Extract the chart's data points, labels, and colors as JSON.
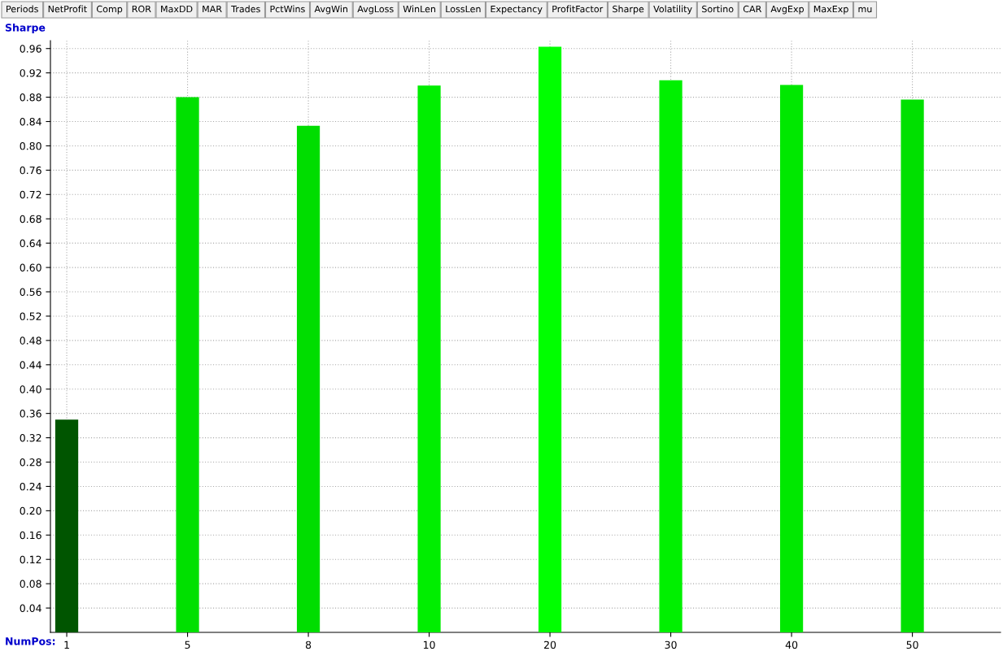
{
  "chart_data": {
    "type": "bar",
    "ylabel": "Sharpe",
    "xlabel": "NumPos:",
    "categories": [
      "1",
      "5",
      "8",
      "10",
      "20",
      "30",
      "40",
      "50"
    ],
    "values": [
      0.35,
      0.88,
      0.833,
      0.899,
      0.963,
      0.908,
      0.9,
      0.876
    ],
    "colors": [
      "#005500",
      "#00e000",
      "#00dd00",
      "#00ee00",
      "#00ff00",
      "#00f000",
      "#00e800",
      "#00e000"
    ],
    "ylim": [
      0,
      0.973
    ],
    "yticks": [
      0.04,
      0.08,
      0.12,
      0.16,
      {
        "value": 0.2,
        "label": "0.20"
      },
      0.24,
      0.28,
      0.32,
      0.36,
      {
        "value": 0.4,
        "label": "0.40"
      },
      0.44,
      0.48,
      0.52,
      0.56,
      {
        "value": 0.6,
        "label": "0.60"
      },
      0.64,
      0.68,
      0.72,
      0.76,
      {
        "value": 0.8,
        "label": "0.80"
      },
      0.84,
      0.88,
      0.92,
      0.96
    ],
    "grid": true,
    "annotations": [
      "Periods",
      "NetProfit",
      "Comp",
      "ROR",
      "MaxDD",
      "MAR",
      "Trades",
      "PctWins",
      "AvgWin",
      "AvgLoss",
      "WinLen",
      "LossLen",
      "Expectancy",
      "ProfitFactor",
      "Sharpe",
      "Volatility",
      "Sortino",
      "CAR",
      "AvgExp",
      "MaxExp",
      "mu"
    ]
  }
}
